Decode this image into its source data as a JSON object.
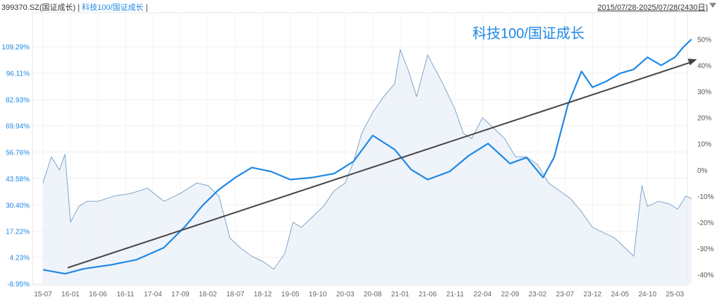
{
  "header": {
    "index_label": "399370.SZ(国证成长)",
    "separator": "|",
    "series_label": "科技100/国证成长",
    "date_range": "2015/07/28-2025/07/28(2430日)"
  },
  "chart_data": {
    "type": "line",
    "annotation": "科技100/国证成长",
    "left_axis": {
      "ticks": [
        "109.29%",
        "96.11%",
        "82.93%",
        "69.94%",
        "56.76%",
        "43.58%",
        "30.40%",
        "17.22%",
        "4.23%",
        "-8.95%"
      ],
      "range": [
        -8.95,
        115
      ]
    },
    "right_axis": {
      "ticks": [
        "50%",
        "40%",
        "30%",
        "20%",
        "10%",
        "0%",
        "-10%",
        "-20%",
        "-30%",
        "-40%"
      ],
      "range": [
        -40,
        55
      ]
    },
    "x_labels": [
      "15-07",
      "16-01",
      "16-06",
      "16-11",
      "17-04",
      "17-09",
      "18-02",
      "18-07",
      "18-12",
      "19-05",
      "19-10",
      "20-03",
      "20-08",
      "21-01",
      "21-06",
      "21-11",
      "22-04",
      "22-09",
      "23-02",
      "23-07",
      "23-12",
      "24-05",
      "24-10",
      "25-03"
    ],
    "grid": true,
    "series": [
      {
        "name": "科技100/国证成长",
        "axis": "left",
        "color": "#1e88e5",
        "x": [
          0,
          0.8,
          1.5,
          2.5,
          3.4,
          4.4,
          5.2,
          5.8,
          6.4,
          7.0,
          7.6,
          8.3,
          9.0,
          9.8,
          10.6,
          11.3,
          12.0,
          12.8,
          13.4,
          14.0,
          14.8,
          15.5,
          16.2,
          17.0,
          17.6,
          18.2,
          18.6,
          19.1,
          19.6,
          20.0,
          20.5,
          21.0,
          21.5,
          22.0,
          22.5,
          23.0,
          23.3,
          23.6
        ],
        "values": [
          -2.0,
          -4.0,
          -1.5,
          0.5,
          3.0,
          9.0,
          20.0,
          30.0,
          38.0,
          44.0,
          49.0,
          47.0,
          43.0,
          44.0,
          46.0,
          52.0,
          65.0,
          58.0,
          48.0,
          43.0,
          47.0,
          55.0,
          61.0,
          51.0,
          54.0,
          44.0,
          54.0,
          80.0,
          97.0,
          89.0,
          92.0,
          96.0,
          98.0,
          104.0,
          100.0,
          104.0,
          109.0,
          113.0
        ]
      },
      {
        "name": "399370.SZ(国证成长)",
        "axis": "right",
        "color": "#7fa6c9",
        "x": [
          0,
          0.3,
          0.6,
          0.8,
          1.0,
          1.3,
          1.6,
          2.0,
          2.6,
          3.2,
          3.8,
          4.4,
          5.0,
          5.6,
          6.0,
          6.4,
          6.8,
          7.2,
          7.6,
          8.0,
          8.4,
          8.8,
          9.1,
          9.4,
          9.8,
          10.2,
          10.6,
          11.0,
          11.3,
          11.6,
          12.0,
          12.4,
          12.8,
          13.0,
          13.3,
          13.6,
          14.0,
          14.3,
          14.6,
          15.0,
          15.3,
          15.6,
          16.0,
          16.4,
          16.8,
          17.2,
          17.6,
          18.0,
          18.4,
          18.8,
          19.2,
          19.6,
          20.0,
          20.4,
          20.8,
          21.2,
          21.5,
          21.8,
          22.0,
          22.4,
          22.8,
          23.1,
          23.4,
          23.6
        ],
        "values": [
          -5,
          5,
          0,
          6,
          -20,
          -14,
          -12,
          -12,
          -10,
          -9,
          -7,
          -12,
          -9,
          -5,
          -6,
          -10,
          -26,
          -30,
          -33,
          -35,
          -38,
          -32,
          -20,
          -22,
          -18,
          -14,
          -8,
          -5,
          3,
          14,
          22,
          28,
          33,
          46,
          38,
          28,
          44,
          38,
          32,
          23,
          14,
          12,
          20,
          16,
          12,
          5,
          5,
          2,
          -5,
          -8,
          -11,
          -16,
          -22,
          -24,
          -26,
          -30,
          -33,
          -6,
          -14,
          -12,
          -13,
          -15,
          -10,
          -11
        ]
      },
      {
        "name": "trend",
        "axis": "left",
        "color": "#444444",
        "x": [
          0.9,
          23.8
        ],
        "values": [
          -1.0,
          103.0
        ]
      }
    ]
  }
}
